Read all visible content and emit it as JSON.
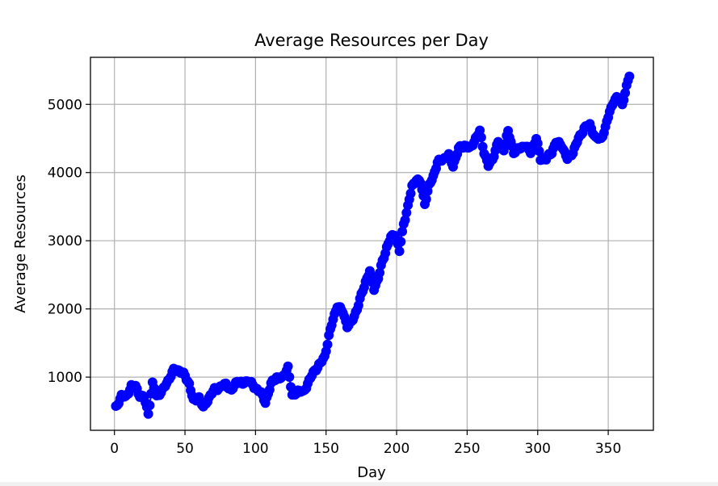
{
  "chart_data": {
    "type": "scatter",
    "title": "Average Resources per Day",
    "xlabel": "Day",
    "ylabel": "Average Resources",
    "xlim": [
      -17,
      382
    ],
    "ylim": [
      220,
      5690
    ],
    "xticks": [
      0,
      50,
      100,
      150,
      200,
      250,
      300,
      350
    ],
    "yticks": [
      1000,
      2000,
      3000,
      4000,
      5000
    ],
    "grid": true,
    "marker_color": "#0000ff",
    "line_color": "#0000ff",
    "keypoints": [
      [
        1,
        550
      ],
      [
        5,
        730
      ],
      [
        8,
        700
      ],
      [
        12,
        870
      ],
      [
        15,
        860
      ],
      [
        18,
        730
      ],
      [
        21,
        700
      ],
      [
        24,
        470
      ],
      [
        27,
        900
      ],
      [
        30,
        720
      ],
      [
        34,
        800
      ],
      [
        38,
        950
      ],
      [
        42,
        1100
      ],
      [
        46,
        1100
      ],
      [
        50,
        1020
      ],
      [
        53,
        900
      ],
      [
        56,
        650
      ],
      [
        60,
        700
      ],
      [
        63,
        550
      ],
      [
        67,
        700
      ],
      [
        71,
        820
      ],
      [
        75,
        850
      ],
      [
        79,
        900
      ],
      [
        83,
        800
      ],
      [
        87,
        950
      ],
      [
        91,
        900
      ],
      [
        95,
        960
      ],
      [
        99,
        850
      ],
      [
        103,
        800
      ],
      [
        107,
        630
      ],
      [
        111,
        900
      ],
      [
        115,
        1000
      ],
      [
        119,
        980
      ],
      [
        123,
        1150
      ],
      [
        126,
        720
      ],
      [
        130,
        800
      ],
      [
        134,
        780
      ],
      [
        138,
        950
      ],
      [
        142,
        1100
      ],
      [
        146,
        1200
      ],
      [
        149,
        1300
      ],
      [
        152,
        1600
      ],
      [
        155,
        1850
      ],
      [
        158,
        2050
      ],
      [
        162,
        1950
      ],
      [
        165,
        1750
      ],
      [
        168,
        1800
      ],
      [
        172,
        2000
      ],
      [
        175,
        2200
      ],
      [
        178,
        2400
      ],
      [
        181,
        2550
      ],
      [
        184,
        2300
      ],
      [
        187,
        2450
      ],
      [
        190,
        2700
      ],
      [
        193,
        2900
      ],
      [
        196,
        3050
      ],
      [
        199,
        3100
      ],
      [
        202,
        2850
      ],
      [
        205,
        3250
      ],
      [
        208,
        3500
      ],
      [
        211,
        3800
      ],
      [
        214,
        3900
      ],
      [
        217,
        3850
      ],
      [
        220,
        3550
      ],
      [
        223,
        3800
      ],
      [
        226,
        3950
      ],
      [
        229,
        4150
      ],
      [
        233,
        4200
      ],
      [
        237,
        4250
      ],
      [
        240,
        4100
      ],
      [
        244,
        4350
      ],
      [
        248,
        4400
      ],
      [
        252,
        4350
      ],
      [
        256,
        4500
      ],
      [
        259,
        4600
      ],
      [
        262,
        4300
      ],
      [
        265,
        4100
      ],
      [
        268,
        4200
      ],
      [
        272,
        4450
      ],
      [
        276,
        4350
      ],
      [
        279,
        4600
      ],
      [
        283,
        4300
      ],
      [
        287,
        4350
      ],
      [
        291,
        4400
      ],
      [
        295,
        4300
      ],
      [
        299,
        4500
      ],
      [
        302,
        4200
      ],
      [
        306,
        4200
      ],
      [
        310,
        4300
      ],
      [
        313,
        4450
      ],
      [
        317,
        4400
      ],
      [
        321,
        4200
      ],
      [
        325,
        4300
      ],
      [
        329,
        4500
      ],
      [
        333,
        4650
      ],
      [
        337,
        4700
      ],
      [
        341,
        4500
      ],
      [
        345,
        4500
      ],
      [
        348,
        4650
      ],
      [
        351,
        4900
      ],
      [
        354,
        5050
      ],
      [
        357,
        5100
      ],
      [
        360,
        5000
      ],
      [
        363,
        5250
      ],
      [
        365,
        5430
      ]
    ]
  }
}
